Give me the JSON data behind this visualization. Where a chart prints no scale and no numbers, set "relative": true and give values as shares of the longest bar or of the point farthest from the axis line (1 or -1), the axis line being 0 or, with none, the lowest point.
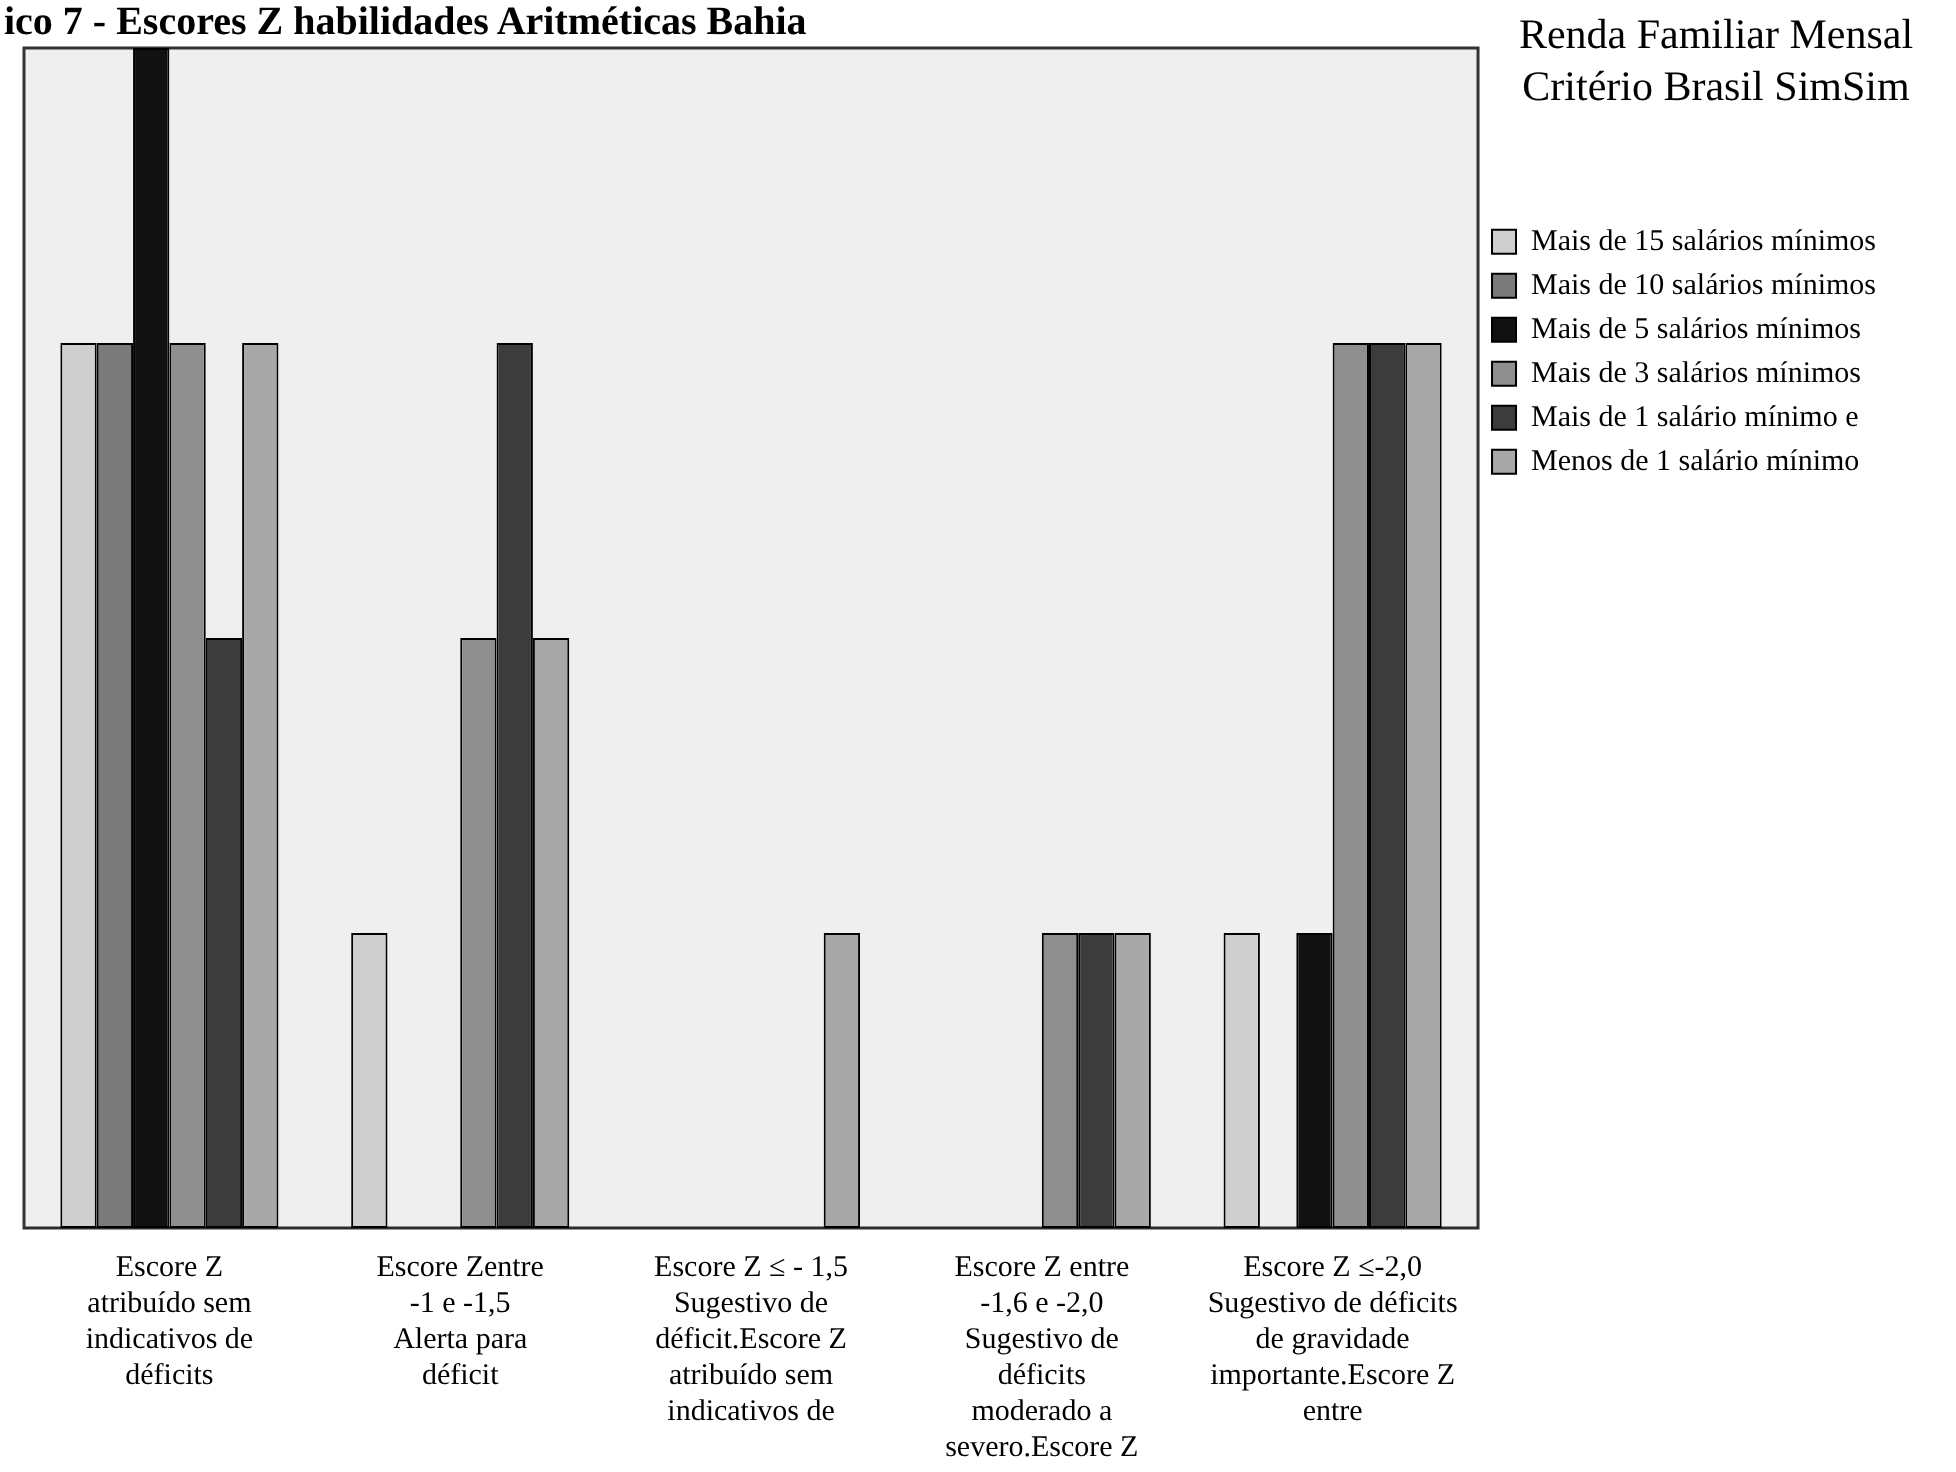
{
  "chart_data": {
    "type": "bar",
    "title": "ico 7 - Escores Z habilidades Aritméticas Bahia",
    "legend_title": "Renda Familiar Mensal\nCritério Brasil SimSim",
    "relative": true,
    "legend": "right",
    "categories": [
      "Escore Z\natribuído sem\nindicativos de\ndéficits",
      "Escore Zentre\n-1 e -1,5\nAlerta para\ndéficit",
      "Escore Z ≤ - 1,5\nSugestivo de\ndéficit.Escore Z\natribuído sem\nindicativos de",
      "Escore Z entre\n-1,6 e -2,0\nSugestivo de\ndéficits\nmoderado a\nsevero.Escore Z",
      "Escore Z ≤-2,0\nSugestivo de déficits\nde gravidade\nimportante.Escore Z\nentre"
    ],
    "series": [
      {
        "name": "Mais de 15 salários mínimos",
        "color": "#cfcfcf",
        "values": [
          0.75,
          0.25,
          0,
          0,
          0.25
        ]
      },
      {
        "name": "Mais de 10 salários mínimos",
        "color": "#7a7a7a",
        "values": [
          0.75,
          0,
          0,
          0,
          0
        ]
      },
      {
        "name": "Mais de 5 salários mínimos",
        "color": "#111111",
        "values": [
          1,
          0,
          0,
          0,
          0.25
        ]
      },
      {
        "name": "Mais de 3 salários mínimos",
        "color": "#8f8f8f",
        "values": [
          0.75,
          0.5,
          0,
          0.25,
          0.75
        ]
      },
      {
        "name": "Mais de 1 salário mínimo e",
        "color": "#3c3c3c",
        "values": [
          0.5,
          0.75,
          0,
          0.25,
          0.75
        ]
      },
      {
        "name": "Menos de 1 salário mínimo",
        "color": "#a8a8a8",
        "values": [
          0.75,
          0.5,
          0.25,
          0.25,
          0.75
        ]
      }
    ]
  }
}
